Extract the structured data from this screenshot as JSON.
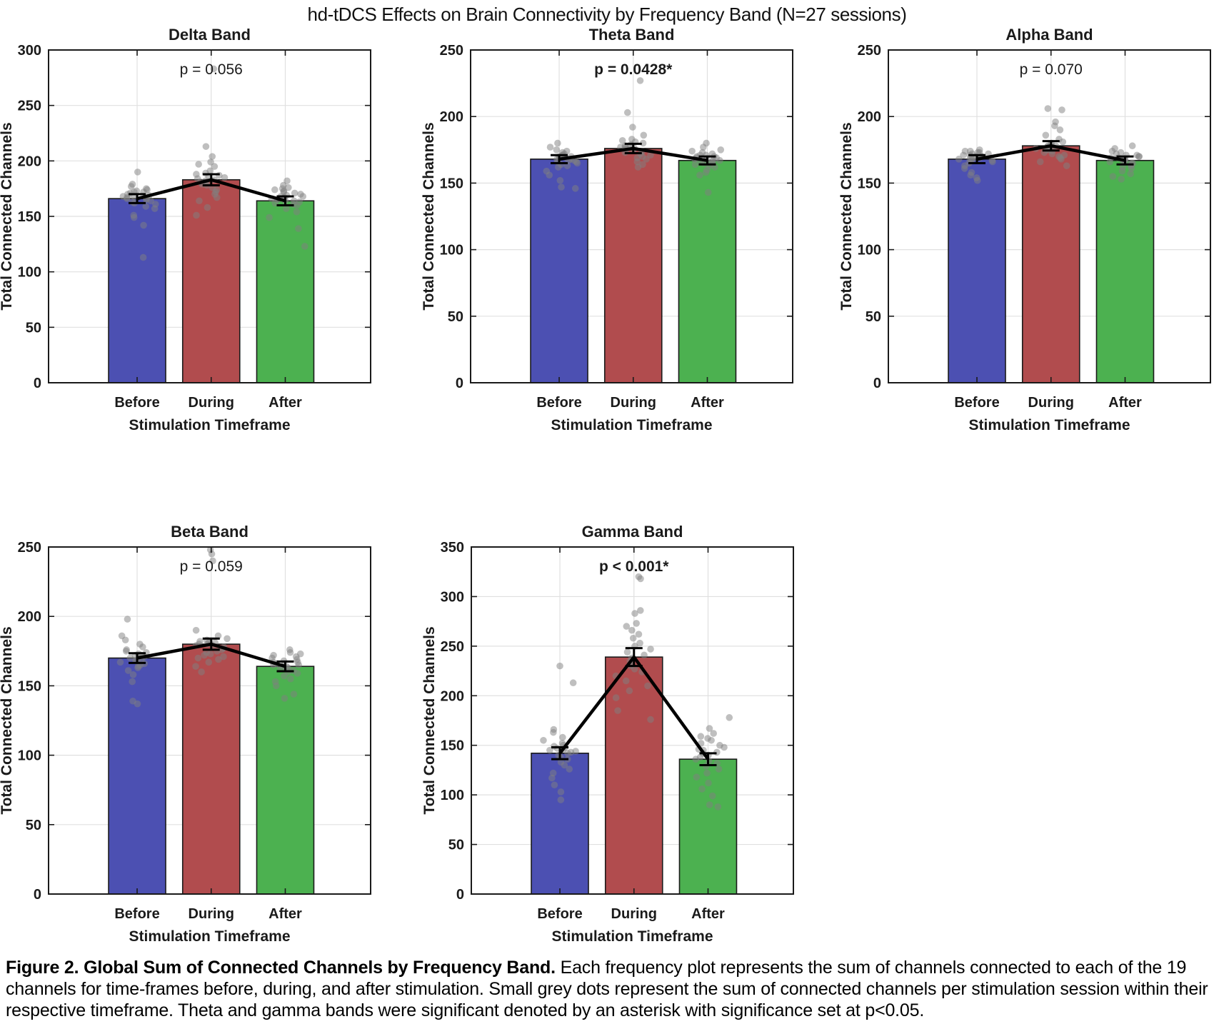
{
  "suptitle": "hd-tDCS Effects on Brain Connectivity by Frequency Band (N=27 sessions)",
  "caption": {
    "figure_label": "Figure 2. ",
    "bold_title": "Global Sum of Connected Channels by Frequency Band.",
    "body": " Each frequency plot represents the sum of channels connected to each of the 19 channels for time-frames before, during, and after stimulation. Small grey dots represent the sum of connected channels per stimulation session within their respective timeframe. Theta and gamma bands were significant denoted by an asterisk with significance set at p<0.05."
  },
  "style": {
    "bar_colors": [
      "#4C50B2",
      "#B14C4E",
      "#4CB150"
    ],
    "dot_color": "#808080",
    "dot_opacity": 0.5,
    "grid_color": "#E0E0E0",
    "axis_color": "#1A1A1A",
    "line_color": "#000000",
    "p_ns_color": "#8C8C8C",
    "p_sig_color": "#000000"
  },
  "chart_data": [
    {
      "type": "bar",
      "title": "Delta Band",
      "categories": [
        "Before",
        "During",
        "After"
      ],
      "xlabel": "Stimulation Timeframe",
      "ylabel": "Total Connected Channels",
      "ylim": [
        0,
        300
      ],
      "ytick_step": 50,
      "grid": true,
      "means": [
        166,
        183,
        164
      ],
      "sem": [
        4,
        5,
        4
      ],
      "p_label": "p = 0.056",
      "significant": false,
      "points": [
        [
          113,
          142,
          149,
          151,
          157,
          159,
          161,
          162,
          163,
          164,
          165,
          166,
          166,
          167,
          168,
          168,
          169,
          170,
          171,
          172,
          172,
          173,
          174,
          175,
          177,
          179,
          190
        ],
        [
          283,
          213,
          204,
          199,
          197,
          195,
          191,
          189,
          188,
          187,
          186,
          185,
          184,
          183,
          182,
          181,
          180,
          179,
          178,
          176,
          174,
          172,
          170,
          167,
          164,
          158,
          151
        ],
        [
          123,
          139,
          149,
          154,
          157,
          160,
          161,
          162,
          163,
          164,
          164,
          165,
          166,
          166,
          167,
          168,
          168,
          169,
          170,
          171,
          172,
          173,
          174,
          175,
          176,
          178,
          182
        ]
      ]
    },
    {
      "type": "bar",
      "title": "Theta Band",
      "categories": [
        "Before",
        "During",
        "After"
      ],
      "xlabel": "Stimulation Timeframe",
      "ylabel": "Total Connected Channels",
      "ylim": [
        0,
        250
      ],
      "ytick_step": 50,
      "grid": true,
      "means": [
        168,
        176,
        167
      ],
      "sem": [
        3,
        3.5,
        3
      ],
      "p_label": "p = 0.0428*",
      "significant": true,
      "points": [
        [
          146,
          147,
          152,
          156,
          159,
          162,
          163,
          164,
          165,
          166,
          166,
          167,
          167,
          168,
          168,
          169,
          169,
          170,
          170,
          171,
          171,
          172,
          173,
          174,
          175,
          177,
          180
        ],
        [
          227,
          203,
          192,
          186,
          183,
          182,
          181,
          180,
          179,
          178,
          178,
          177,
          177,
          176,
          176,
          175,
          175,
          174,
          173,
          172,
          171,
          170,
          169,
          168,
          166,
          164,
          162
        ],
        [
          143,
          156,
          158,
          160,
          162,
          163,
          164,
          165,
          165,
          166,
          166,
          167,
          167,
          168,
          168,
          169,
          169,
          170,
          170,
          171,
          171,
          172,
          173,
          174,
          175,
          177,
          180
        ]
      ]
    },
    {
      "type": "bar",
      "title": "Alpha Band",
      "categories": [
        "Before",
        "During",
        "After"
      ],
      "xlabel": "Stimulation Timeframe",
      "ylabel": "Total Connected Channels",
      "ylim": [
        0,
        250
      ],
      "ytick_step": 50,
      "grid": true,
      "means": [
        168,
        178,
        167
      ],
      "sem": [
        3,
        3.5,
        3
      ],
      "p_label": "p = 0.070",
      "significant": false,
      "points": [
        [
          152,
          154,
          156,
          158,
          161,
          163,
          165,
          166,
          167,
          167,
          168,
          168,
          168,
          169,
          169,
          170,
          170,
          170,
          171,
          171,
          172,
          172,
          173,
          173,
          174,
          174,
          175
        ],
        [
          206,
          205,
          196,
          193,
          190,
          186,
          183,
          181,
          180,
          179,
          178,
          178,
          177,
          177,
          176,
          176,
          175,
          175,
          174,
          173,
          172,
          171,
          170,
          169,
          168,
          166,
          163
        ],
        [
          153,
          155,
          157,
          159,
          161,
          162,
          163,
          164,
          165,
          165,
          166,
          166,
          167,
          167,
          168,
          168,
          169,
          169,
          170,
          170,
          171,
          171,
          172,
          173,
          174,
          176,
          178
        ]
      ]
    },
    {
      "type": "bar",
      "title": "Beta Band",
      "categories": [
        "Before",
        "During",
        "After"
      ],
      "xlabel": "Stimulation Timeframe",
      "ylabel": "Total Connected Channels",
      "ylim": [
        0,
        250
      ],
      "ytick_step": 50,
      "grid": true,
      "means": [
        170,
        180,
        164
      ],
      "sem": [
        3.5,
        4,
        3.5
      ],
      "p_label": "p = 0.059",
      "significant": false,
      "points": [
        [
          137,
          139,
          153,
          158,
          161,
          163,
          164,
          165,
          166,
          167,
          168,
          168,
          169,
          170,
          170,
          171,
          172,
          172,
          173,
          174,
          175,
          176,
          178,
          180,
          183,
          186,
          198
        ],
        [
          248,
          245,
          240,
          190,
          186,
          184,
          183,
          182,
          181,
          181,
          180,
          180,
          179,
          179,
          178,
          177,
          176,
          175,
          174,
          173,
          172,
          171,
          170,
          169,
          167,
          164,
          160
        ],
        [
          141,
          144,
          150,
          153,
          155,
          157,
          159,
          160,
          161,
          162,
          163,
          163,
          164,
          164,
          165,
          165,
          166,
          167,
          167,
          168,
          169,
          170,
          171,
          172,
          173,
          174,
          176
        ]
      ]
    },
    {
      "type": "bar",
      "title": "Gamma Band",
      "categories": [
        "Before",
        "During",
        "After"
      ],
      "xlabel": "Stimulation Timeframe",
      "ylabel": "Total Connected Channels",
      "ylim": [
        0,
        350
      ],
      "ytick_step": 50,
      "grid": true,
      "means": [
        142,
        239,
        136
      ],
      "sem": [
        6,
        9,
        6
      ],
      "p_label": "p < 0.001*",
      "significant": true,
      "points": [
        [
          230,
          213,
          166,
          163,
          158,
          155,
          152,
          150,
          149,
          148,
          147,
          146,
          145,
          144,
          143,
          142,
          140,
          138,
          136,
          133,
          130,
          126,
          122,
          117,
          110,
          103,
          95
        ],
        [
          320,
          318,
          286,
          283,
          273,
          270,
          266,
          262,
          258,
          253,
          250,
          247,
          244,
          241,
          238,
          235,
          232,
          230,
          227,
          224,
          220,
          215,
          210,
          205,
          198,
          185,
          176
        ],
        [
          178,
          167,
          162,
          159,
          157,
          155,
          152,
          150,
          148,
          146,
          145,
          143,
          142,
          140,
          138,
          136,
          134,
          132,
          129,
          126,
          122,
          118,
          112,
          106,
          99,
          90,
          88
        ]
      ]
    }
  ]
}
